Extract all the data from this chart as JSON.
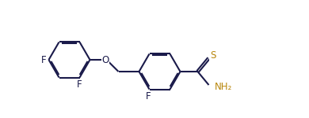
{
  "bg_color": "#ffffff",
  "bond_color": "#1a1a4a",
  "S_color": "#b8860b",
  "N_color": "#b8860b",
  "lw": 1.5,
  "dbo": 0.032,
  "fig_width": 3.9,
  "fig_height": 1.5,
  "dpi": 100,
  "xlim": [
    -0.3,
    7.5
  ],
  "ylim": [
    -1.0,
    1.4
  ]
}
